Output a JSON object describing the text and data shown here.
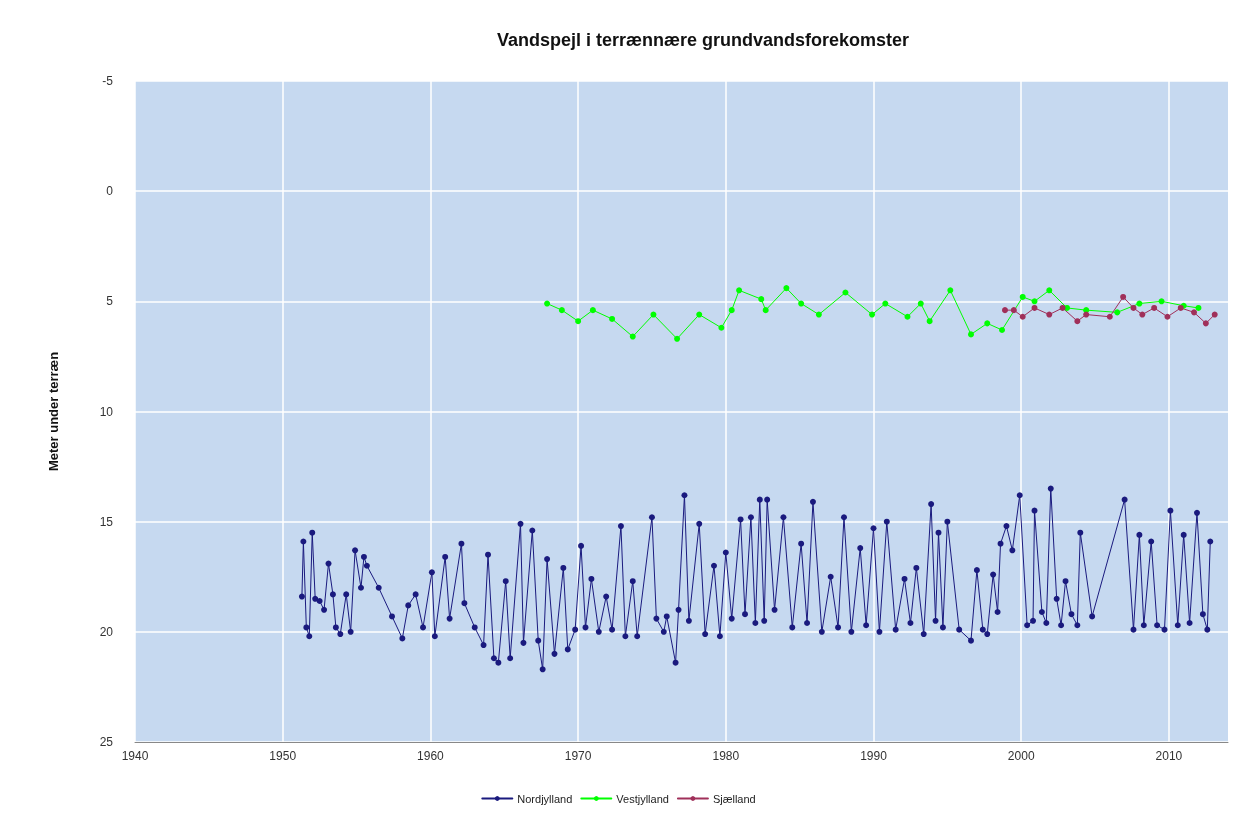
{
  "chart_data": {
    "type": "line",
    "title": "Vandspejl i terrænnære grundvandsforekomster",
    "ylabel": "Meter under terræn",
    "xlim": [
      1940,
      2014
    ],
    "xticks": [
      1940,
      1950,
      1960,
      1970,
      1980,
      1990,
      2000,
      2010
    ],
    "ylim": [
      25,
      -5
    ],
    "yticks": [
      -5,
      0,
      5,
      10,
      15,
      20,
      25
    ],
    "grid": true,
    "legend": "bottom",
    "marker": "circle",
    "line_style": "solid",
    "series": [
      {
        "name": "Nordjylland",
        "color": "#1a1a7e",
        "x": [
          1951.3,
          1951.4,
          1951.6,
          1951.8,
          1952.0,
          1952.2,
          1952.5,
          1952.8,
          1953.1,
          1953.4,
          1953.6,
          1953.9,
          1954.3,
          1954.6,
          1954.9,
          1955.3,
          1955.5,
          1955.7,
          1956.5,
          1957.4,
          1958.1,
          1958.5,
          1959.0,
          1959.5,
          1960.1,
          1960.3,
          1961.0,
          1961.3,
          1962.1,
          1962.3,
          1963.0,
          1963.6,
          1963.9,
          1964.3,
          1964.6,
          1965.1,
          1965.4,
          1966.1,
          1966.3,
          1966.9,
          1967.3,
          1967.6,
          1967.9,
          1968.4,
          1969.0,
          1969.3,
          1969.8,
          1970.2,
          1970.5,
          1970.9,
          1971.4,
          1971.9,
          1972.3,
          1972.9,
          1973.2,
          1973.7,
          1974.0,
          1975.0,
          1975.3,
          1975.8,
          1976.0,
          1976.6,
          1976.8,
          1977.2,
          1977.5,
          1978.2,
          1978.6,
          1979.2,
          1979.6,
          1980.0,
          1980.4,
          1981.0,
          1981.3,
          1981.7,
          1982.0,
          1982.3,
          1982.6,
          1982.8,
          1983.3,
          1983.9,
          1984.5,
          1985.1,
          1985.5,
          1985.9,
          1986.5,
          1987.1,
          1987.6,
          1988.0,
          1988.5,
          1989.1,
          1989.5,
          1990.0,
          1990.4,
          1990.9,
          1991.5,
          1992.1,
          1992.5,
          1992.9,
          1993.4,
          1993.9,
          1994.2,
          1994.4,
          1994.7,
          1995.0,
          1995.8,
          1996.6,
          1997.0,
          1997.4,
          1997.7,
          1998.1,
          1998.4,
          1998.6,
          1999.0,
          1999.4,
          1999.9,
          2000.4,
          2000.8,
          2000.9,
          2001.4,
          2001.7,
          2002.0,
          2002.4,
          2002.7,
          2003.0,
          2003.4,
          2003.8,
          2004.0,
          2004.8,
          2007.0,
          2007.6,
          2008.0,
          2008.3,
          2008.8,
          2009.2,
          2009.7,
          2010.1,
          2010.6,
          2011.0,
          2011.4,
          2011.9,
          2012.3,
          2012.6,
          2012.8
        ],
        "values": [
          18.4,
          15.9,
          19.8,
          20.2,
          15.5,
          18.5,
          18.6,
          19.0,
          16.9,
          18.3,
          19.8,
          20.1,
          18.3,
          20.0,
          16.3,
          18.0,
          16.6,
          17.0,
          18.0,
          19.3,
          20.3,
          18.8,
          18.3,
          19.8,
          17.3,
          20.2,
          16.6,
          19.4,
          16.0,
          18.7,
          19.8,
          20.6,
          16.5,
          21.2,
          21.4,
          17.7,
          21.2,
          15.1,
          20.5,
          15.4,
          20.4,
          21.7,
          16.7,
          21.0,
          17.1,
          20.8,
          19.9,
          16.1,
          19.8,
          17.6,
          20.0,
          18.4,
          19.9,
          15.2,
          20.2,
          17.7,
          20.2,
          14.8,
          19.4,
          20.0,
          19.3,
          21.4,
          19.0,
          13.8,
          19.5,
          15.1,
          20.1,
          17.0,
          20.2,
          16.4,
          19.4,
          14.9,
          19.2,
          14.8,
          19.6,
          14.0,
          19.5,
          14.0,
          19.0,
          14.8,
          19.8,
          16.0,
          19.6,
          14.1,
          20.0,
          17.5,
          19.8,
          14.8,
          20.0,
          16.2,
          19.7,
          15.3,
          20.0,
          15.0,
          19.9,
          17.6,
          19.6,
          17.1,
          20.1,
          14.2,
          19.5,
          15.5,
          19.8,
          15.0,
          19.9,
          20.4,
          17.2,
          19.9,
          20.1,
          17.4,
          19.1,
          16.0,
          15.2,
          16.3,
          13.8,
          19.7,
          19.5,
          14.5,
          19.1,
          19.6,
          13.5,
          18.5,
          19.7,
          17.7,
          19.2,
          19.7,
          15.5,
          19.3,
          14.0,
          19.9,
          15.6,
          19.7,
          15.9,
          19.7,
          19.9,
          14.5,
          19.7,
          15.6,
          19.6,
          14.6,
          19.2,
          19.9,
          15.9
        ]
      },
      {
        "name": "Vestjylland",
        "color": "#00ff00",
        "x": [
          1967.9,
          1968.9,
          1970.0,
          1971.0,
          1972.3,
          1973.7,
          1975.1,
          1976.7,
          1978.2,
          1979.7,
          1980.4,
          1980.9,
          1982.4,
          1982.7,
          1984.1,
          1985.1,
          1986.3,
          1988.1,
          1989.9,
          1990.8,
          1992.3,
          1993.2,
          1993.8,
          1995.2,
          1996.6,
          1997.7,
          1998.7,
          2000.1,
          2000.9,
          2001.9,
          2003.1,
          2004.4,
          2006.5,
          2008.0,
          2009.5,
          2011.0,
          2012.0
        ],
        "values": [
          5.1,
          5.4,
          5.9,
          5.4,
          5.8,
          6.6,
          5.6,
          6.7,
          5.6,
          6.2,
          5.4,
          4.5,
          4.9,
          5.4,
          4.4,
          5.1,
          5.6,
          4.6,
          5.6,
          5.1,
          5.7,
          5.1,
          5.9,
          4.5,
          6.5,
          6.0,
          6.3,
          4.8,
          5.0,
          4.5,
          5.3,
          5.4,
          5.5,
          5.1,
          5.0,
          5.2,
          5.3
        ]
      },
      {
        "name": "Sjælland",
        "color": "#a0305a",
        "x": [
          1998.9,
          1999.5,
          2000.1,
          2000.9,
          2001.9,
          2002.8,
          2003.8,
          2004.4,
          2006.0,
          2006.9,
          2007.6,
          2008.2,
          2009.0,
          2009.9,
          2010.8,
          2011.7,
          2012.5,
          2013.1
        ],
        "values": [
          5.4,
          5.4,
          5.7,
          5.3,
          5.6,
          5.3,
          5.9,
          5.6,
          5.7,
          4.8,
          5.3,
          5.6,
          5.3,
          5.7,
          5.3,
          5.5,
          6.0,
          5.6
        ]
      }
    ]
  }
}
